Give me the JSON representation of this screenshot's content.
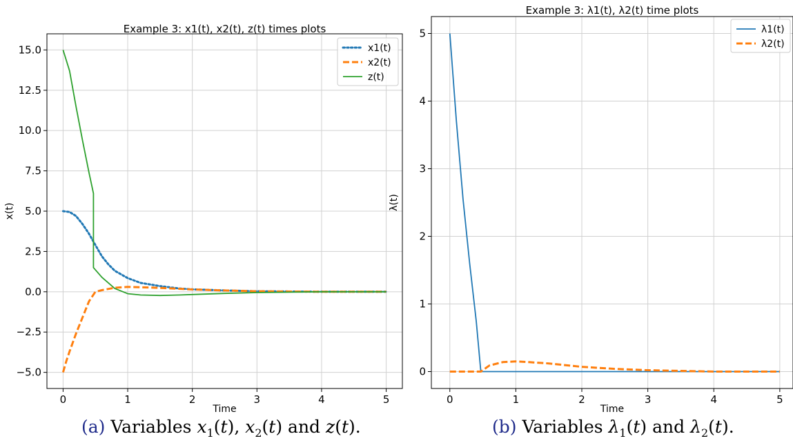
{
  "chart_data": [
    {
      "type": "line",
      "title": "Example 3: x1(t), x2(t), z(t) times plots",
      "xlabel": "Time",
      "ylabel": "x(t)",
      "xlim": [
        -0.25,
        5.25
      ],
      "ylim": [
        -6.0,
        16.0
      ],
      "xticks": [
        0,
        1,
        2,
        3,
        4,
        5
      ],
      "yticks": [
        -5.0,
        -2.5,
        0.0,
        2.5,
        5.0,
        7.5,
        10.0,
        12.5,
        15.0
      ],
      "ytick_labels": [
        "−5.0",
        "−2.5",
        "0.0",
        "2.5",
        "5.0",
        "7.5",
        "10.0",
        "12.5",
        "15.0"
      ],
      "grid": true,
      "legend": "top-right",
      "series": [
        {
          "name": "x1(t)",
          "color": "#1f77b4",
          "style": "dotted",
          "x": [
            0,
            0.1,
            0.2,
            0.3,
            0.4,
            0.5,
            0.6,
            0.7,
            0.8,
            1.0,
            1.2,
            1.5,
            1.8,
            2.0,
            2.5,
            3.0,
            4.0,
            5.0
          ],
          "y": [
            5.0,
            4.95,
            4.7,
            4.2,
            3.6,
            2.9,
            2.2,
            1.7,
            1.3,
            0.85,
            0.55,
            0.35,
            0.2,
            0.15,
            0.08,
            0.03,
            0.0,
            0.0
          ]
        },
        {
          "name": "x2(t)",
          "color": "#ff7f0e",
          "style": "dashed",
          "x": [
            0,
            0.05,
            0.1,
            0.2,
            0.3,
            0.4,
            0.5,
            0.6,
            0.8,
            1.0,
            1.2,
            1.5,
            2.0,
            2.5,
            3.0,
            4.0,
            5.0
          ],
          "y": [
            -5.0,
            -4.3,
            -3.7,
            -2.6,
            -1.6,
            -0.6,
            0.0,
            0.1,
            0.25,
            0.3,
            0.28,
            0.24,
            0.14,
            0.08,
            0.03,
            0.0,
            0.0
          ]
        },
        {
          "name": "z(t)",
          "color": "#2ca02c",
          "style": "solid",
          "x": [
            0,
            0.1,
            0.2,
            0.3,
            0.4,
            0.47,
            0.47,
            0.6,
            0.8,
            1.0,
            1.2,
            1.5,
            1.8,
            2.0,
            2.5,
            3.0,
            4.0,
            5.0
          ],
          "y": [
            15.0,
            13.7,
            11.5,
            9.4,
            7.4,
            6.1,
            1.5,
            0.9,
            0.2,
            -0.12,
            -0.2,
            -0.23,
            -0.2,
            -0.17,
            -0.1,
            -0.05,
            0.0,
            0.0
          ]
        }
      ]
    },
    {
      "type": "line",
      "title": "Example 3: λ1(t), λ2(t) time plots",
      "xlabel": "Time",
      "ylabel": "λ(t)",
      "xlim": [
        -0.28,
        5.2
      ],
      "ylim": [
        -0.25,
        5.25
      ],
      "xticks": [
        0,
        1,
        2,
        3,
        4,
        5
      ],
      "yticks": [
        0,
        1,
        2,
        3,
        4,
        5
      ],
      "ytick_labels": [
        "0",
        "1",
        "2",
        "3",
        "4",
        "5"
      ],
      "grid": true,
      "legend": "top-right",
      "series": [
        {
          "name": "λ1(t)",
          "color": "#1f77b4",
          "style": "solid",
          "x": [
            0,
            0.1,
            0.2,
            0.3,
            0.4,
            0.47,
            0.6,
            1.0,
            2.0,
            3.0,
            4.0,
            5.0
          ],
          "y": [
            5.0,
            3.7,
            2.55,
            1.6,
            0.75,
            0.0,
            0.0,
            0.0,
            0.0,
            0.0,
            0.0,
            0.0
          ]
        },
        {
          "name": "λ2(t)",
          "color": "#ff7f0e",
          "style": "dashed",
          "x": [
            0,
            0.47,
            0.6,
            0.8,
            1.0,
            1.2,
            1.5,
            2.0,
            2.5,
            3.0,
            3.5,
            4.0,
            5.0
          ],
          "y": [
            0.0,
            0.0,
            0.09,
            0.14,
            0.15,
            0.14,
            0.12,
            0.07,
            0.04,
            0.02,
            0.01,
            0.0,
            0.0
          ]
        }
      ]
    }
  ],
  "captions": [
    {
      "tag": "(a)",
      "pre": "Variables ",
      "vars": [
        {
          "base": "x",
          "sub": "1"
        },
        {
          "base": "x",
          "sub": "2"
        },
        {
          "base": "z",
          "sub": ""
        }
      ],
      "seps": [
        ", ",
        " and ",
        "."
      ]
    },
    {
      "tag": "(b)",
      "pre": "Variables ",
      "vars": [
        {
          "base": "λ",
          "sub": "1"
        },
        {
          "base": "λ",
          "sub": "2"
        }
      ],
      "seps": [
        " and ",
        "."
      ]
    }
  ]
}
